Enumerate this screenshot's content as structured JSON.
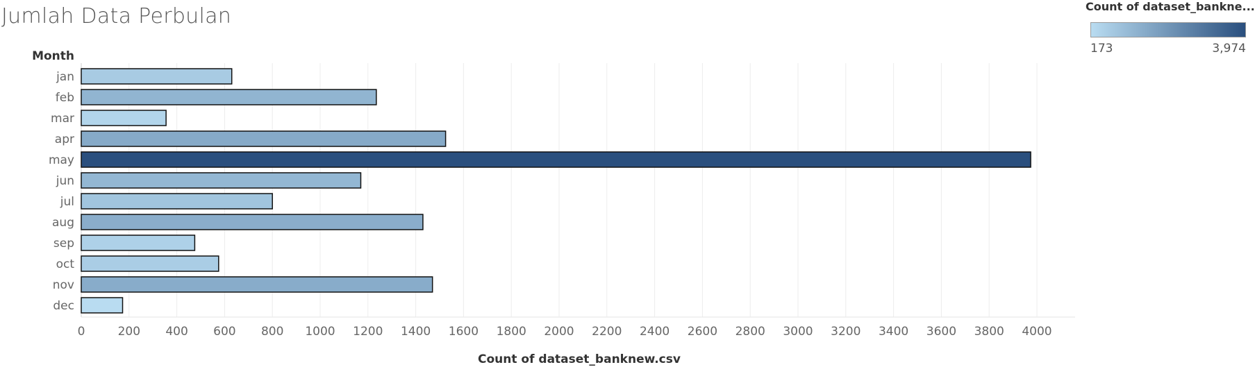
{
  "chart_data": {
    "type": "bar",
    "orientation": "horizontal",
    "title": "Jumlah Data Perbulan",
    "ylabel": "Month",
    "xlabel": "Count of dataset_banknew.csv",
    "categories": [
      "jan",
      "feb",
      "mar",
      "apr",
      "may",
      "jun",
      "jul",
      "aug",
      "sep",
      "oct",
      "nov",
      "dec"
    ],
    "values": [
      630,
      1235,
      355,
      1525,
      3974,
      1170,
      800,
      1430,
      475,
      575,
      1470,
      173
    ],
    "xlim": [
      0,
      4000
    ],
    "xticks": [
      0,
      200,
      400,
      600,
      800,
      1000,
      1200,
      1400,
      1600,
      1800,
      2000,
      2200,
      2400,
      2600,
      2800,
      3000,
      3200,
      3400,
      3600,
      3800,
      4000
    ],
    "grid": "vertical",
    "legend": {
      "title": "Count of dataset_bankne...",
      "min_label": "173",
      "max_label": "3,974",
      "min_value": 173,
      "max_value": 3974,
      "color_low": "#b9dcf1",
      "color_high": "#2a4f7e",
      "placement": "top-right"
    }
  }
}
